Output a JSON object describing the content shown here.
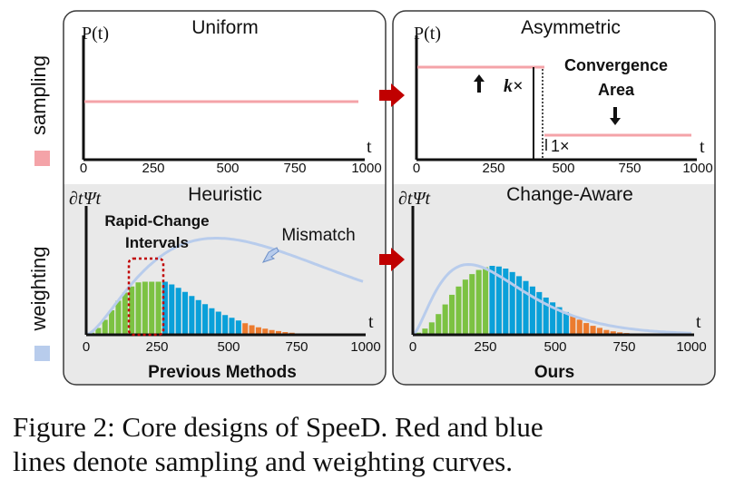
{
  "colors": {
    "sampling": "#f4a3a8",
    "weighting": "#b8ccec",
    "green": "#7cc242",
    "blue": "#0aa0d9",
    "orange": "#ec7b2e",
    "dark_red": "#c00000",
    "convergence": "#ed7d31",
    "panel_bg_bottom": "#e9e9e9",
    "arrow_red": "#c00000"
  },
  "row_labels": {
    "sampling": "sampling",
    "weighting": "weighting"
  },
  "panels": {
    "uniform": {
      "title": "Uniform",
      "ylabel": "P(t)",
      "xlabel": "t",
      "ticks": [
        "0",
        "250",
        "500",
        "750",
        "1000"
      ]
    },
    "asymmetric": {
      "title": "Asymmetric",
      "ylabel": "P(t)",
      "xlabel": "t",
      "ticks": [
        "0",
        "250",
        "500",
        "750",
        "1000"
      ],
      "k_label": "k×",
      "one_label": "1×",
      "convergence_line1": "Convergence",
      "convergence_line2": "Area"
    },
    "heuristic": {
      "title": "Heuristic",
      "ylabel": "∂tΨt",
      "xlabel": "t",
      "ticks": [
        "0",
        "250",
        "500",
        "750",
        "1000"
      ],
      "rapid_line1": "Rapid-Change",
      "rapid_line2": "Intervals",
      "mismatch": "Mismatch",
      "footer": "Previous Methods"
    },
    "change_aware": {
      "title": "Change-Aware",
      "ylabel": "∂tΨt",
      "xlabel": "t",
      "ticks": [
        "0",
        "250",
        "500",
        "750",
        "1000"
      ],
      "footer": "Ours"
    }
  },
  "chart_data": [
    {
      "type": "line",
      "title": "Uniform",
      "xlabel": "t",
      "ylabel": "P(t)",
      "xlim": [
        0,
        1000
      ],
      "series": [
        {
          "x": [
            0,
            1000
          ],
          "y": [
            1,
            1
          ]
        }
      ]
    },
    {
      "type": "line",
      "title": "Asymmetric",
      "xlabel": "t",
      "ylabel": "P(t)",
      "xlim": [
        0,
        1000
      ],
      "series": [
        {
          "x": [
            0,
            430,
            430,
            1000
          ],
          "y": [
            "k",
            "k",
            1,
            1
          ]
        }
      ]
    },
    {
      "type": "bar",
      "title": "Heuristic",
      "xlabel": "t",
      "ylabel": "∂tΨt",
      "xlim": [
        0,
        1000
      ],
      "values": [
        0.03,
        0.1,
        0.22,
        0.36,
        0.5,
        0.62,
        0.71,
        0.77,
        0.78,
        0.78,
        0.78,
        0.78,
        0.74,
        0.69,
        0.63,
        0.57,
        0.51,
        0.45,
        0.39,
        0.34,
        0.29,
        0.25,
        0.21,
        0.17,
        0.14,
        0.11,
        0.09,
        0.07,
        0.055,
        0.04,
        0.03,
        0.02,
        0.015,
        0.01
      ],
      "groups": [
        "green",
        "green",
        "green",
        "green",
        "green",
        "green",
        "green",
        "green",
        "green",
        "green",
        "green",
        "blue",
        "blue",
        "blue",
        "blue",
        "blue",
        "blue",
        "blue",
        "blue",
        "blue",
        "blue",
        "blue",
        "blue",
        "orange",
        "orange",
        "orange",
        "orange",
        "orange",
        "orange",
        "orange",
        "orange",
        "orange",
        "orange",
        "orange"
      ],
      "curve_peak_t": 470
    },
    {
      "type": "bar",
      "title": "Change-Aware",
      "xlabel": "t",
      "ylabel": "∂tΨt",
      "xlim": [
        0,
        1000
      ],
      "values": [
        0.03,
        0.09,
        0.18,
        0.3,
        0.44,
        0.58,
        0.7,
        0.8,
        0.88,
        0.94,
        0.98,
        1.0,
        0.99,
        0.96,
        0.91,
        0.85,
        0.78,
        0.7,
        0.62,
        0.54,
        0.47,
        0.4,
        0.33,
        0.27,
        0.22,
        0.17,
        0.13,
        0.1,
        0.07,
        0.05,
        0.035,
        0.025,
        0.015,
        0.01
      ],
      "groups": [
        "green",
        "green",
        "green",
        "green",
        "green",
        "green",
        "green",
        "green",
        "green",
        "green",
        "green",
        "blue",
        "blue",
        "blue",
        "blue",
        "blue",
        "blue",
        "blue",
        "blue",
        "blue",
        "blue",
        "blue",
        "blue",
        "orange",
        "orange",
        "orange",
        "orange",
        "orange",
        "orange",
        "orange",
        "orange",
        "orange",
        "orange",
        "orange"
      ],
      "curve_peak_t": 200
    }
  ],
  "caption": {
    "line1": "Figure 2: Core designs of SpeeD. Red and blue",
    "line2": "lines denote sampling and weighting curves."
  }
}
